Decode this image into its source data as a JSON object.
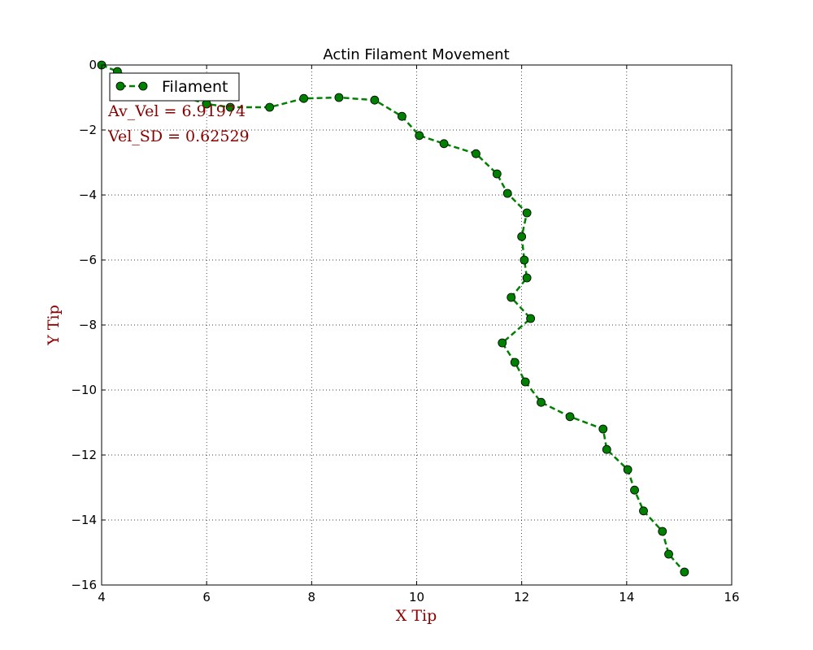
{
  "chart_data": {
    "type": "line",
    "title": "Actin Filament Movement",
    "xlabel": "X Tip",
    "ylabel": "Y Tip",
    "xlim": [
      4,
      16
    ],
    "ylim": [
      -16,
      0
    ],
    "xticks": [
      4,
      6,
      8,
      10,
      12,
      14,
      16
    ],
    "yticks": [
      0,
      -2,
      -4,
      -6,
      -8,
      -10,
      -12,
      -14,
      -16
    ],
    "xtick_labels": [
      "4",
      "6",
      "8",
      "10",
      "12",
      "14",
      "16"
    ],
    "ytick_labels": [
      "0",
      "−2",
      "−4",
      "−6",
      "−8",
      "−10",
      "−12",
      "−14",
      "−16"
    ],
    "grid": true,
    "legend": {
      "placement": "top-left",
      "entries": [
        "Filament"
      ]
    },
    "annotations": [
      "Av_Vel =  6.91974",
      "Vel_SD = 0.62529"
    ],
    "series": [
      {
        "name": "Filament",
        "color": "#008000",
        "line_style": "dashed",
        "marker": "circle",
        "x": [
          4.0,
          4.3,
          4.8,
          5.4,
          6.0,
          6.45,
          7.2,
          7.85,
          8.52,
          9.2,
          9.72,
          10.05,
          10.52,
          11.13,
          11.53,
          11.73,
          12.1,
          12.0,
          12.05,
          12.1,
          11.8,
          12.17,
          11.63,
          11.87,
          12.07,
          12.37,
          12.92,
          13.55,
          13.62,
          14.02,
          14.15,
          14.32,
          14.68,
          14.8,
          15.1
        ],
        "y": [
          0.0,
          -0.2,
          -0.55,
          -0.9,
          -1.2,
          -1.3,
          -1.3,
          -1.03,
          -1.0,
          -1.08,
          -1.58,
          -2.17,
          -2.42,
          -2.73,
          -3.35,
          -3.95,
          -4.55,
          -5.28,
          -6.0,
          -6.55,
          -7.15,
          -7.8,
          -8.55,
          -9.15,
          -9.75,
          -10.38,
          -10.82,
          -11.2,
          -11.83,
          -12.45,
          -13.08,
          -13.72,
          -14.35,
          -15.05,
          -15.6
        ]
      }
    ]
  }
}
